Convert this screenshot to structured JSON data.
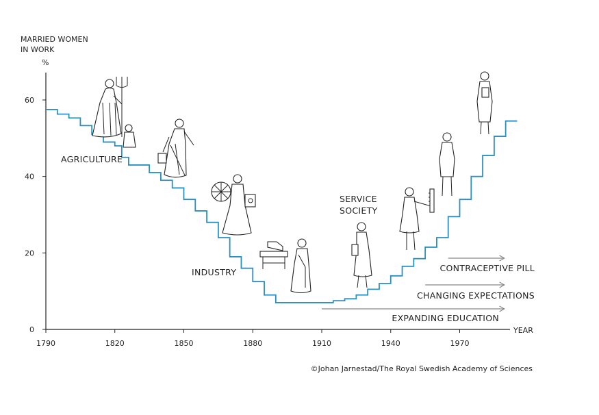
{
  "chart_data": {
    "type": "line",
    "title": "",
    "ylabel_line1": "MARRIED WOMEN",
    "ylabel_line2": "IN WORK",
    "yunit": "%",
    "xlabel": "YEAR",
    "xlim": [
      1790,
      2000
    ],
    "ylim": [
      0,
      70
    ],
    "xticks": [
      "1790",
      "1820",
      "1850",
      "1880",
      "1910",
      "1940",
      "1970"
    ],
    "yticks": [
      "0",
      "20",
      "40",
      "60"
    ],
    "line_color": "#2a8fc1",
    "series": [
      {
        "x": [
          1790,
          1795,
          1800,
          1805,
          1810,
          1815,
          1820,
          1823,
          1826,
          1830,
          1835,
          1840,
          1845,
          1850,
          1855,
          1860,
          1865,
          1870,
          1875,
          1880,
          1885,
          1890,
          1895,
          1900,
          1905,
          1910,
          1915,
          1920,
          1925,
          1930,
          1935,
          1940,
          1945,
          1950,
          1955,
          1960,
          1965,
          1970,
          1975,
          1980,
          1985,
          1990
        ],
        "y": [
          57.5,
          56.3,
          55.3,
          53.3,
          51,
          49,
          48,
          45,
          43,
          43,
          41,
          39,
          37,
          34,
          31,
          28,
          24,
          19,
          16,
          12.5,
          9,
          7,
          7,
          7,
          7,
          7,
          7.5,
          8,
          9,
          10.5,
          12,
          14,
          16.5,
          18.5,
          21.5,
          24,
          29.5,
          34,
          40,
          45.5,
          50.5,
          54.5
        ]
      }
    ],
    "annotations": {
      "agriculture": "AGRICULTURE",
      "industry": "INDUSTRY",
      "service_line1": "SERVICE",
      "service_line2": "SOCIETY",
      "pill": "CONTRACEPTIVE PILL",
      "expectations": "CHANGING EXPECTATIONS",
      "education": "EXPANDING EDUCATION"
    },
    "arrows": {
      "pill": {
        "from": 1965,
        "to": 1990
      },
      "expectations": {
        "from": 1955,
        "to": 1990
      },
      "education": {
        "from": 1910,
        "to": 1990
      }
    }
  },
  "credit": "©Johan Jarnestad/The Royal Swedish Academy of Sciences",
  "illustrations": [
    "woman-with-pitchfork-icon",
    "child-icon",
    "woman-carrying-bucket-icon",
    "woman-at-spinning-wheel-icon",
    "sewing-machine-icon",
    "factory-woman-icon",
    "service-woman-icon",
    "woman-at-board-icon",
    "office-woman-icon",
    "professional-woman-icon"
  ]
}
